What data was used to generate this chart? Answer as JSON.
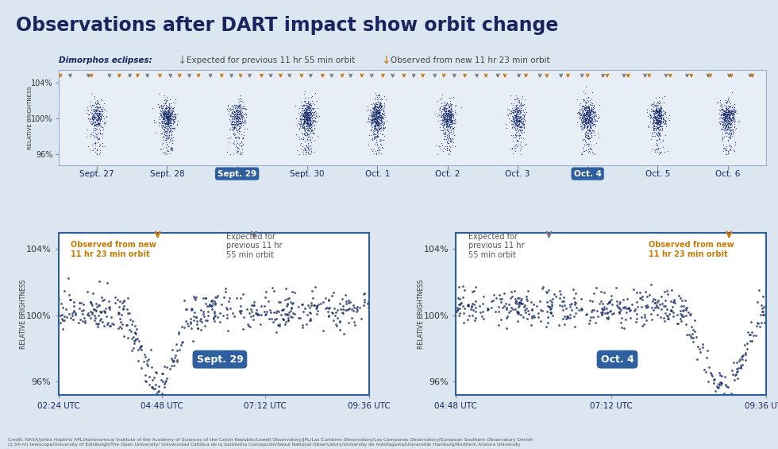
{
  "title": "Observations after DART impact show orbit change",
  "title_color": "#1a2560",
  "background_color": "#dce6f0",
  "panel_bg": "#ffffff",
  "top_panel_bg": "#e8eef5",
  "dot_color": "#1a2d6b",
  "arrow_gray": "#7a7a7a",
  "arrow_orange": "#cc7a00",
  "top_dates": [
    "Sept. 27",
    "Sept. 28",
    "Sept. 29",
    "Sept. 30",
    "Oct. 1",
    "Oct. 2",
    "Oct. 3",
    "Oct. 4",
    "Oct. 5",
    "Oct. 6"
  ],
  "highlighted_dates": [
    "Sept. 29",
    "Oct. 4"
  ],
  "highlight_color": "#2e5f9e",
  "legend_text_gray": "Expected for previous 11 hr 55 min orbit",
  "legend_text_orange": "Observed from new 11 hr 23 min orbit",
  "ylabel": "RELATIVE BRIGHTNESS",
  "sept29_xlabel_ticks": [
    "02:24 UTC",
    "04:48 UTC",
    "07:12 UTC",
    "09:36 UTC"
  ],
  "oct4_xlabel_ticks": [
    "04:48 UTC",
    "07:12 UTC",
    "09:36 UTC"
  ],
  "sept29_label": "Sept. 29",
  "oct4_label": "Oct. 4",
  "credit": "Credit: NASA/Johns Hopkins APL/Astronomical Institute of the Academy of Sciences of the Czech Republic/Lowell Observatory/JPL/Las Cumbres Observatory/Las Campanas Observatory/European Southern Observatory Danish\n(1.54-m) telescope/University of Edinburgh/The Open University/ Universidad Católica de la Santísima Concepción/Seoul National Observatory/University de Antofagasta/Universität Hamburg/Northern Arizona University"
}
